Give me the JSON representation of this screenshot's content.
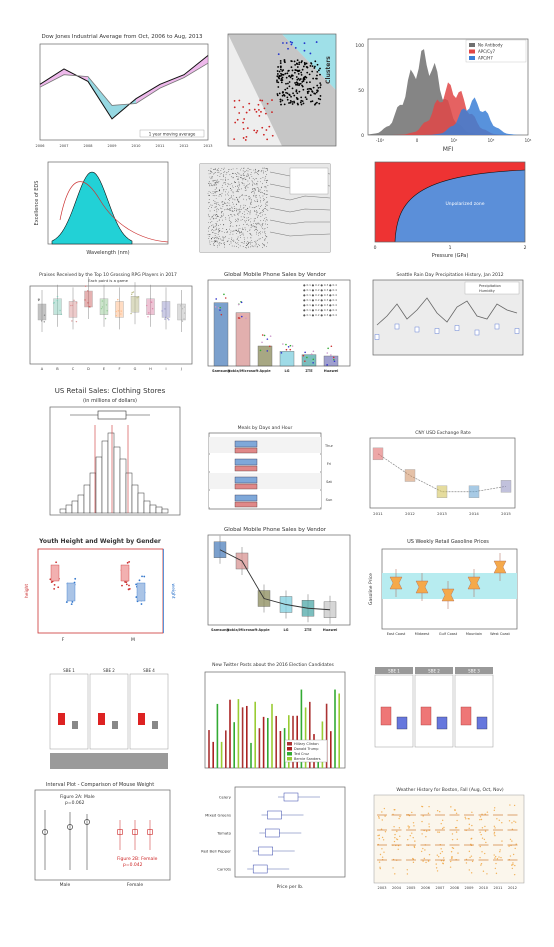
{
  "gallery": [
    {
      "id": "p1",
      "title": "Dow Jones Industrial Average from Oct, 2006 to Aug, 2013",
      "legend": [
        "1 year moving average"
      ],
      "chart_data": {
        "type": "line",
        "x": [
          "2006",
          "2007",
          "2008",
          "2009",
          "2010",
          "2011",
          "2012",
          "2013"
        ],
        "y": [
          11800,
          13400,
          12100,
          8200,
          10300,
          11800,
          12800,
          14800
        ],
        "ma": [
          11500,
          12800,
          12600,
          9600,
          9800,
          11400,
          12500,
          14000
        ],
        "ylim": [
          6000,
          16000
        ]
      }
    },
    {
      "id": "p2",
      "title": "",
      "axis_labels": [
        "Clusters"
      ],
      "chart_data": {
        "type": "scatter",
        "series": [
          {
            "name": "",
            "color": "#000000",
            "count": 220
          },
          {
            "name": "",
            "color": "#cc2222",
            "count": 40
          },
          {
            "name": "",
            "color": "#2233cc",
            "count": 12
          }
        ]
      }
    },
    {
      "id": "p3",
      "title": "",
      "xlabel": "MFI",
      "legend": [
        "No Antibody",
        "APC/Cy7",
        "APC/H7"
      ],
      "chart_data": {
        "type": "area",
        "xticks": [
          "-10²",
          "0",
          "10²",
          "10³",
          "10⁴"
        ],
        "yticks": [
          "0",
          "50",
          "100"
        ],
        "series": [
          {
            "name": "No Antibody",
            "color": "#707070",
            "peak": 98
          },
          {
            "name": "APC/Cy7",
            "color": "#e04646",
            "peak": 60
          },
          {
            "name": "APC/H7",
            "color": "#3b7fd6",
            "peak": 42
          }
        ]
      }
    },
    {
      "id": "p4",
      "title": "",
      "xlabel": "Wavelength (nm)",
      "ylabel": "Excellence of EDS",
      "chart_data": {
        "type": "area",
        "peak": 1.0,
        "ylim": [
          0,
          1
        ]
      }
    },
    {
      "id": "p5",
      "title": "",
      "chart_data": {
        "type": "area",
        "note": "layered bands"
      }
    },
    {
      "id": "p6",
      "title": "",
      "xlabel": "Pressure (GPa)",
      "region_label": "Unpolarized zone",
      "xticks": [
        "0",
        "1",
        "2"
      ],
      "chart_data": {
        "type": "area"
      }
    },
    {
      "id": "p7",
      "title": "Praises Received by the Top 10 Grossing RPG Players in 2017",
      "subtitle": "Each point is a game",
      "chart_data": {
        "type": "box",
        "categories": [
          "A",
          "B",
          "C",
          "D",
          "E",
          "F",
          "G",
          "H",
          "I",
          "J"
        ],
        "medians": [
          20,
          22,
          21,
          25,
          22,
          21,
          23,
          22,
          21,
          20
        ]
      }
    },
    {
      "id": "p8",
      "title": "Global Mobile Phone Sales by Vendor",
      "categories": [
        "Samsung",
        "Nokia/Microsoft",
        "Apple",
        "LG",
        "ZTE",
        "Huawei"
      ],
      "chart_data": {
        "type": "bar",
        "categories": [
          "Samsung",
          "Nokia/Microsoft",
          "Apple",
          "LG",
          "ZTE",
          "Huawei"
        ],
        "values": [
          95,
          80,
          30,
          22,
          17,
          15
        ],
        "ylim": [
          0,
          120
        ]
      }
    },
    {
      "id": "p9",
      "title": "Seattle Rain Day Precipitation History, Jan 2012",
      "legend": [
        "Precipitation",
        "Humidity"
      ],
      "chart_data": {
        "type": "line",
        "values": [
          5,
          8,
          12,
          7,
          10,
          14,
          9,
          6,
          11,
          13,
          8,
          7,
          12,
          10,
          9
        ]
      }
    },
    {
      "id": "p10",
      "title": "US Retail Sales: Clothing Stores",
      "subtitle": "(in millions of dollars)",
      "chart_data": {
        "type": "bar",
        "categories": [
          "1",
          "2",
          "3",
          "4",
          "5",
          "6",
          "7",
          "8",
          "9",
          "10",
          "11",
          "12",
          "13",
          "14",
          "15",
          "16",
          "17",
          "18"
        ],
        "values": [
          2,
          4,
          6,
          9,
          14,
          20,
          28,
          36,
          40,
          33,
          27,
          20,
          14,
          10,
          6,
          4,
          3,
          2
        ]
      }
    },
    {
      "id": "p11",
      "title": "Meals by Days and Hour",
      "chart_data": {
        "type": "box",
        "categories": [
          "Thur",
          "Fri",
          "Sat",
          "Sun"
        ]
      }
    },
    {
      "id": "p12",
      "title": "CNY USD Exchange Rate",
      "xticks": [
        "2011",
        "2012",
        "2013",
        "2014",
        "2015"
      ],
      "chart_data": {
        "type": "line",
        "x": [
          "2011",
          "2012",
          "2013",
          "2014",
          "2015"
        ],
        "values": [
          6.5,
          6.3,
          6.15,
          6.15,
          6.2
        ]
      }
    },
    {
      "id": "p13",
      "title": "Youth Height and Weight by Gender",
      "xticks": [
        "F",
        "M"
      ],
      "ylabel_left": "height",
      "ylabel_right": "weight",
      "chart_data": {
        "type": "scatter",
        "categories": [
          "F",
          "M"
        ]
      }
    },
    {
      "id": "p14",
      "title": "Global Mobile Phone Sales by Vendor",
      "categories": [
        "Samsung",
        "Nokia/Microsoft",
        "Apple",
        "LG",
        "ZTE",
        "Huawei"
      ],
      "chart_data": {
        "type": "box",
        "categories": [
          "Samsung",
          "Nokia/Microsoft",
          "Apple",
          "LG",
          "ZTE",
          "Huawei"
        ],
        "medians": [
          95,
          80,
          30,
          22,
          17,
          15
        ]
      }
    },
    {
      "id": "p15",
      "title": "US Weekly Retail Gasoline Prices",
      "ylabel": "Gasoline Price",
      "categories": [
        "East Coast",
        "Midwest",
        "Gulf Coast",
        "Mountain",
        "West Coast"
      ],
      "chart_data": {
        "type": "box",
        "categories": [
          "East Coast",
          "Midwest",
          "Gulf Coast",
          "Mountain",
          "West Coast"
        ],
        "medians": [
          3.5,
          3.45,
          3.35,
          3.5,
          3.7
        ]
      }
    },
    {
      "id": "p16",
      "title": "",
      "facets": [
        "SBE 1",
        "SBE 2",
        "SBE 4"
      ],
      "chart_data": {
        "type": "box",
        "facets": [
          "SBE 1",
          "SBE 2",
          "SBE 4"
        ]
      }
    },
    {
      "id": "p17",
      "title": "New Twitter Posts about the 2016 Election Candidates",
      "legend": [
        "Hillary Clinton",
        "Donald Trump",
        "Ted Cruz",
        "Bernie Sanders"
      ],
      "chart_data": {
        "type": "bar",
        "series": [
          {
            "name": "Hillary Clinton",
            "color": "#aa3333"
          },
          {
            "name": "Donald Trump",
            "color": "#aa2222"
          },
          {
            "name": "Ted Cruz",
            "color": "#33aa33"
          },
          {
            "name": "Bernie Sanders",
            "color": "#99cc33"
          }
        ]
      }
    },
    {
      "id": "p18",
      "title": "",
      "facets": [
        "SBE 1",
        "SBE 2",
        "SBE 3"
      ],
      "chart_data": {
        "type": "box",
        "facets": [
          "SBE 1",
          "SBE 2",
          "SBE 3"
        ]
      }
    },
    {
      "id": "p19",
      "title": "Interval Plot - Comparison of Mouse Weight",
      "annotations": [
        "Figure 2A: Male",
        "p=0.062",
        "Figure 2B: Female",
        "p=0.042"
      ],
      "xticks": [
        "Male",
        "Female"
      ],
      "chart_data": {
        "type": "scatter",
        "categories": [
          "Male",
          "Female"
        ]
      }
    },
    {
      "id": "p20",
      "title": "",
      "xlabel": "Price per lb.",
      "categories": [
        "Celery",
        "Mixed Greens",
        "Tomato",
        "Red Bell Pepper",
        "Carrots"
      ],
      "chart_data": {
        "type": "box",
        "categories": [
          "Celery",
          "Mixed Greens",
          "Tomato",
          "Red Bell Pepper",
          "Carrots"
        ],
        "medians": [
          5.0,
          3.5,
          3.3,
          2.7,
          2.2
        ],
        "xlim": [
          0,
          10
        ]
      }
    },
    {
      "id": "p21",
      "title": "Weather History for Boston, Fall (Aug, Oct, Nov)",
      "chart_data": {
        "type": "box",
        "categories": [
          "2003",
          "2004",
          "2005",
          "2006",
          "2007",
          "2008",
          "2009",
          "2010",
          "2011",
          "2012"
        ]
      }
    }
  ]
}
